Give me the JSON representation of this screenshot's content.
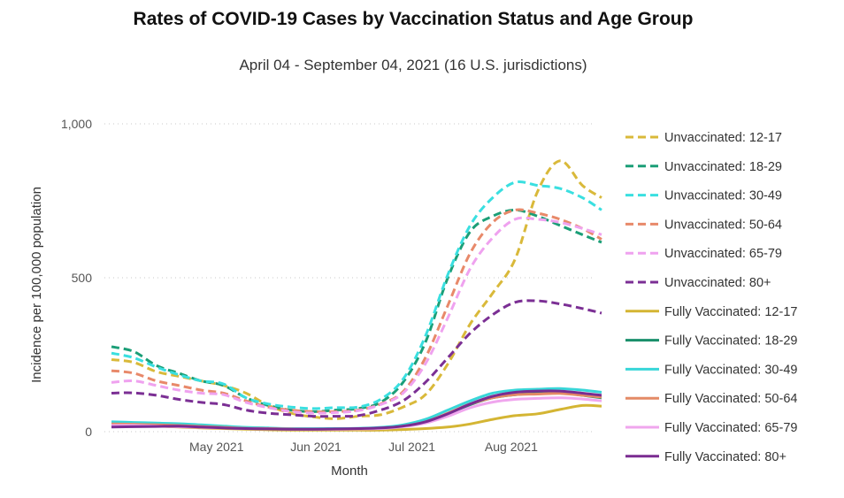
{
  "chart_data": {
    "type": "line",
    "title": "Rates of COVID-19 Cases by Vaccination Status and Age Group",
    "subtitle": "April 04 - September 04, 2021 (16 U.S. jurisdictions)",
    "xlabel": "Month",
    "ylabel": "Incidence per 100,000 population",
    "ylim": [
      0,
      1000
    ],
    "yticks": [
      0,
      500,
      1000
    ],
    "ytick_labels": [
      "0",
      "500",
      "1,000"
    ],
    "x_dates": [
      "2021-04-04",
      "2021-04-11",
      "2021-04-18",
      "2021-04-25",
      "2021-05-02",
      "2021-05-09",
      "2021-05-16",
      "2021-05-23",
      "2021-05-30",
      "2021-06-06",
      "2021-06-13",
      "2021-06-20",
      "2021-06-27",
      "2021-07-04",
      "2021-07-11",
      "2021-07-18",
      "2021-07-25",
      "2021-08-01",
      "2021-08-08",
      "2021-08-15",
      "2021-08-22",
      "2021-08-29",
      "2021-09-04"
    ],
    "xticks": [
      "May 2021",
      "Jun 2021",
      "Jul 2021",
      "Aug 2021"
    ],
    "xtick_dates": [
      "2021-05-01",
      "2021-06-01",
      "2021-07-01",
      "2021-08-01"
    ],
    "legend_position": "right",
    "grid": true,
    "series": [
      {
        "name": "Unvaccinated: 12-17",
        "color": "#D9B93A",
        "dashed": true,
        "values": [
          234,
          225,
          195,
          180,
          165,
          150,
          125,
          85,
          60,
          48,
          42,
          50,
          55,
          80,
          120,
          220,
          350,
          450,
          560,
          780,
          880,
          800,
          760
        ]
      },
      {
        "name": "Unvaccinated: 18-29",
        "color": "#1B9E77",
        "dashed": true,
        "values": [
          276,
          260,
          215,
          190,
          165,
          150,
          110,
          85,
          70,
          65,
          70,
          75,
          95,
          160,
          290,
          500,
          650,
          700,
          720,
          700,
          670,
          640,
          615
        ]
      },
      {
        "name": "Unvaccinated: 30-49",
        "color": "#3ADFE0",
        "dashed": true,
        "values": [
          255,
          240,
          210,
          185,
          165,
          155,
          110,
          90,
          80,
          75,
          78,
          80,
          105,
          170,
          310,
          510,
          670,
          760,
          810,
          800,
          790,
          760,
          720
        ]
      },
      {
        "name": "Unvaccinated: 50-64",
        "color": "#E8896A",
        "dashed": true,
        "values": [
          198,
          190,
          165,
          150,
          135,
          125,
          100,
          80,
          70,
          65,
          65,
          70,
          90,
          130,
          240,
          410,
          580,
          680,
          720,
          710,
          690,
          660,
          625
        ]
      },
      {
        "name": "Unvaccinated: 65-79",
        "color": "#EFA2EF",
        "dashed": true,
        "values": [
          160,
          165,
          150,
          135,
          125,
          120,
          95,
          78,
          65,
          60,
          62,
          68,
          88,
          125,
          220,
          370,
          530,
          630,
          690,
          690,
          680,
          660,
          640
        ]
      },
      {
        "name": "Unvaccinated: 80+",
        "color": "#7B2F94",
        "dashed": true,
        "values": [
          125,
          126,
          118,
          105,
          95,
          88,
          70,
          60,
          55,
          50,
          50,
          52,
          70,
          100,
          160,
          240,
          320,
          380,
          420,
          425,
          415,
          400,
          385
        ]
      },
      {
        "name": "Fully Vaccinated: 12-17",
        "color": "#D4B533",
        "dashed": false,
        "values": [
          20,
          20,
          18,
          15,
          12,
          10,
          8,
          6,
          5,
          5,
          5,
          5,
          5,
          7,
          10,
          15,
          25,
          40,
          52,
          58,
          72,
          85,
          83
        ]
      },
      {
        "name": "Fully Vaccinated: 18-29",
        "color": "#1A8F6B",
        "dashed": false,
        "values": [
          28,
          28,
          25,
          22,
          18,
          15,
          12,
          10,
          10,
          9,
          9,
          10,
          12,
          18,
          32,
          58,
          88,
          110,
          120,
          125,
          128,
          118,
          110
        ]
      },
      {
        "name": "Fully Vaccinated: 30-49",
        "color": "#38D6D8",
        "dashed": false,
        "values": [
          32,
          30,
          28,
          26,
          22,
          18,
          14,
          12,
          10,
          10,
          10,
          11,
          14,
          22,
          40,
          70,
          100,
          125,
          135,
          138,
          140,
          135,
          128
        ]
      },
      {
        "name": "Fully Vaccinated: 50-64",
        "color": "#E48A66",
        "dashed": false,
        "values": [
          25,
          24,
          22,
          20,
          17,
          14,
          11,
          10,
          9,
          8,
          8,
          9,
          11,
          18,
          32,
          60,
          90,
          110,
          120,
          122,
          124,
          118,
          112
        ]
      },
      {
        "name": "Fully Vaccinated: 65-79",
        "color": "#F0A6EE",
        "dashed": false,
        "values": [
          20,
          20,
          18,
          16,
          14,
          12,
          10,
          9,
          8,
          8,
          8,
          9,
          10,
          16,
          28,
          50,
          78,
          96,
          105,
          108,
          110,
          106,
          100
        ]
      },
      {
        "name": "Fully Vaccinated: 80+",
        "color": "#7A2C91",
        "dashed": false,
        "values": [
          15,
          16,
          17,
          18,
          15,
          12,
          10,
          9,
          8,
          8,
          9,
          10,
          12,
          18,
          32,
          58,
          90,
          115,
          128,
          132,
          132,
          125,
          118
        ]
      }
    ]
  }
}
